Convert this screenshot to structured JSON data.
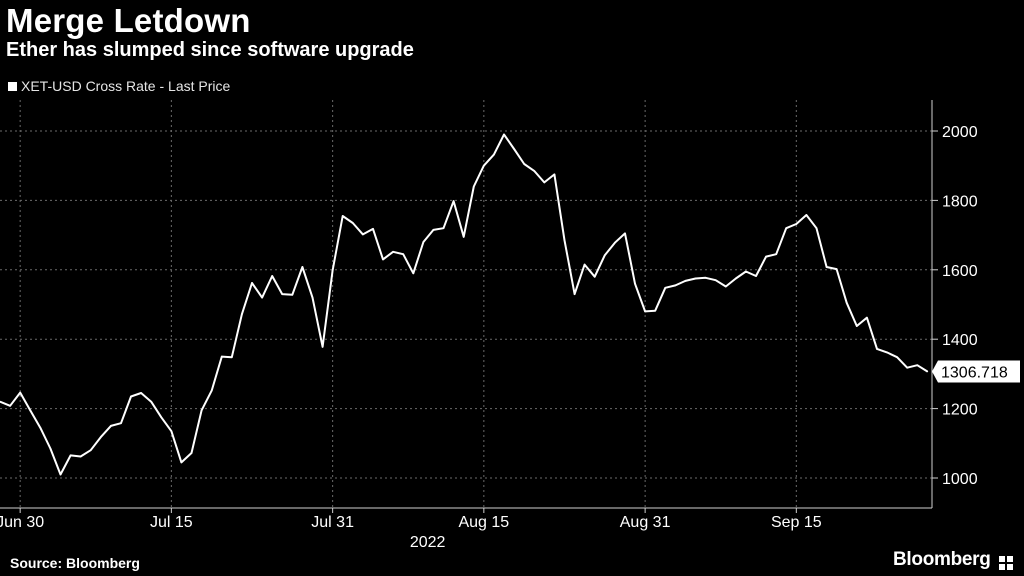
{
  "header": {
    "title": "Merge Letdown",
    "subtitle": "Ether has slumped since software upgrade"
  },
  "footer": {
    "source": "Source: Bloomberg",
    "brand": "Bloomberg"
  },
  "colors": {
    "background": "#000000",
    "line": "#ffffff",
    "grid": "#6b6b6b"
  },
  "chart_data": {
    "type": "line",
    "title": "Merge Letdown",
    "subtitle": "Ether has slumped since software upgrade",
    "legend": [
      "XET-USD Cross Rate - Last Price"
    ],
    "legend_position": "top-left",
    "xlabel": "2022",
    "ylabel": "",
    "ylim": [
      900,
      2100
    ],
    "yticks": [
      1000,
      1200,
      1400,
      1600,
      1800,
      2000
    ],
    "grid": true,
    "x_tick_labels": [
      "Jun 30",
      "Jul 15",
      "Jul 31",
      "Aug 15",
      "Aug 31",
      "Sep 15"
    ],
    "x_tick_index": [
      2,
      17,
      33,
      48,
      64,
      79
    ],
    "last_value_label": "1306.718",
    "series": [
      {
        "name": "XET-USD Cross Rate - Last Price",
        "values": [
          1220,
          1208,
          1246,
          1195,
          1145,
          1085,
          1010,
          1065,
          1062,
          1080,
          1118,
          1150,
          1158,
          1235,
          1245,
          1220,
          1175,
          1135,
          1045,
          1072,
          1195,
          1252,
          1350,
          1348,
          1472,
          1562,
          1520,
          1582,
          1530,
          1528,
          1608,
          1520,
          1378,
          1598,
          1755,
          1735,
          1702,
          1718,
          1630,
          1652,
          1645,
          1590,
          1680,
          1715,
          1720,
          1798,
          1695,
          1840,
          1900,
          1932,
          1990,
          1948,
          1905,
          1885,
          1852,
          1875,
          1685,
          1530,
          1615,
          1580,
          1642,
          1678,
          1705,
          1560,
          1480,
          1482,
          1548,
          1555,
          1568,
          1575,
          1577,
          1570,
          1552,
          1575,
          1595,
          1582,
          1638,
          1645,
          1720,
          1732,
          1758,
          1720,
          1608,
          1602,
          1505,
          1438,
          1462,
          1372,
          1362,
          1348,
          1318,
          1325,
          1307
        ]
      }
    ]
  }
}
